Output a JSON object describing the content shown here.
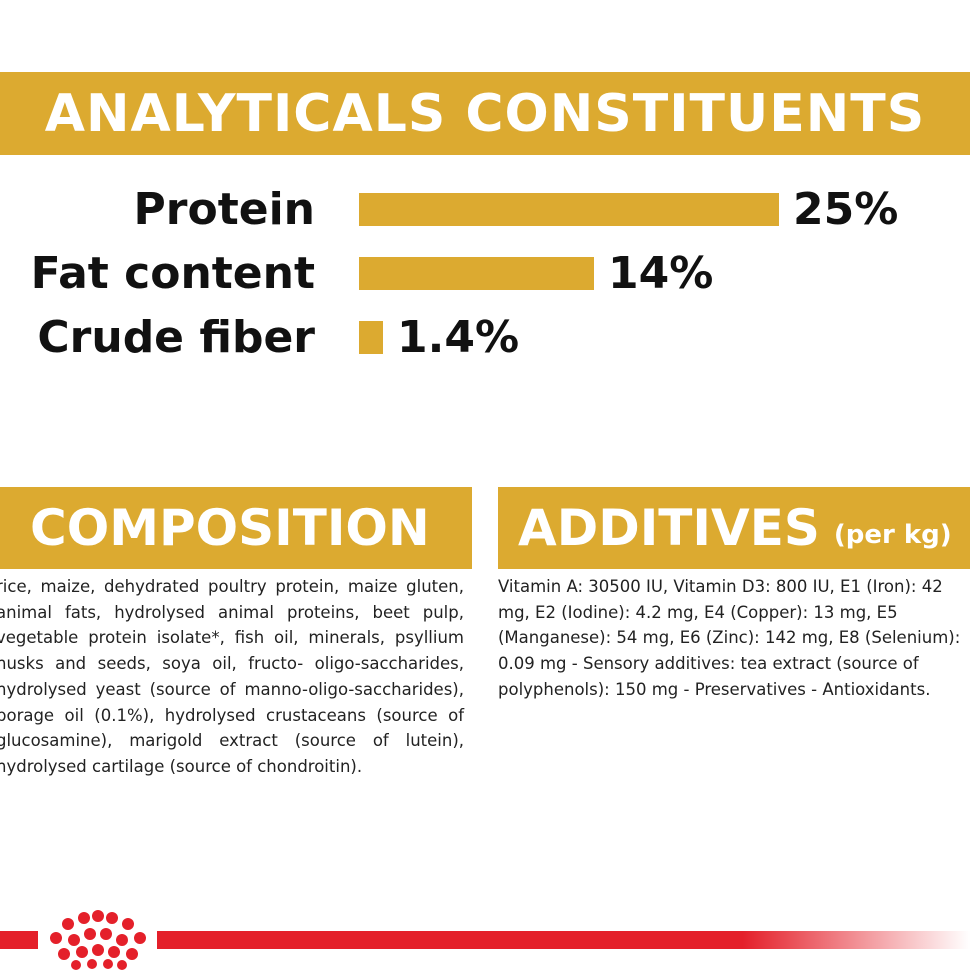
{
  "analyticals": {
    "title": "ANALYTICALS CONSTITUENTS",
    "rows": [
      {
        "label": "Protein",
        "value": "25%",
        "percent": 25
      },
      {
        "label": "Fat content",
        "value": "14%",
        "percent": 14
      },
      {
        "label": "Crude fiber",
        "value": "1.4%",
        "percent": 1.4
      }
    ]
  },
  "composition": {
    "title": "COMPOSITION",
    "text": "rice, maize, dehydrated poultry protein, maize gluten, animal fats, hydrolysed animal proteins, beet pulp, vegetable protein isolate*, fish oil, minerals, psyllium husks and seeds, soya oil, fructo- oligo-saccharides, hydrolysed yeast (source of manno-oligo-saccharides), borage oil (0.1%), hydrolysed crustaceans (source of glucosamine), marigold extract (source of lutein), hydrolysed cartilage (source of chondroitin)."
  },
  "additives": {
    "title": "ADDITIVES",
    "title_small": "(per kg)",
    "text": "Vitamin A: 30500 IU, Vitamin D3: 800 IU, E1 (Iron): 42 mg, E2 (Iodine): 4.2 mg, E4 (Copper): 13 mg, E5 (Manganese): 54 mg, E6 (Zinc): 142 mg, E8 (Selenium): 0.09 mg - Sensory additives: tea extract (source of polyphenols): 150 mg - Preservatives - Antioxidants."
  },
  "brand": {
    "logo_icon": "crown-icon",
    "accent_color": "#dcaa30",
    "brand_red": "#e4202a"
  }
}
